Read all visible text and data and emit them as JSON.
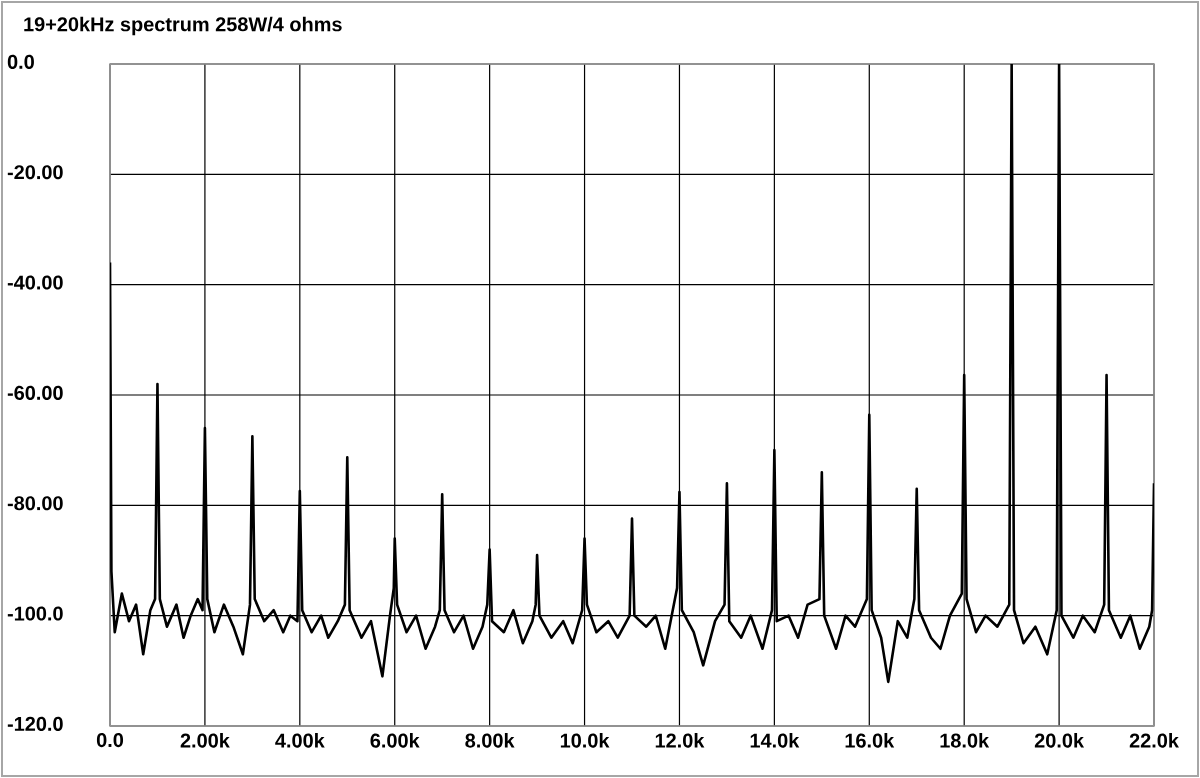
{
  "chart_data": {
    "type": "line",
    "title": "19+20kHz spectrum 258W/4 ohms",
    "xlim": [
      0,
      22000
    ],
    "ylim": [
      -120,
      0
    ],
    "xticks": [
      {
        "value": 0,
        "label": "0.0"
      },
      {
        "value": 2000,
        "label": "2.00k"
      },
      {
        "value": 4000,
        "label": "4.00k"
      },
      {
        "value": 6000,
        "label": "6.00k"
      },
      {
        "value": 8000,
        "label": "8.00k"
      },
      {
        "value": 10000,
        "label": "10.0k"
      },
      {
        "value": 12000,
        "label": "12.0k"
      },
      {
        "value": 14000,
        "label": "14.0k"
      },
      {
        "value": 16000,
        "label": "16.0k"
      },
      {
        "value": 18000,
        "label": "18.0k"
      },
      {
        "value": 20000,
        "label": "20.0k"
      },
      {
        "value": 22000,
        "label": "22.0k"
      }
    ],
    "yticks": [
      {
        "value": 0,
        "label": "0.0"
      },
      {
        "value": -20,
        "label": "-20.00"
      },
      {
        "value": -40,
        "label": "-40.00"
      },
      {
        "value": -60,
        "label": "-60.00"
      },
      {
        "value": -80,
        "label": "-80.00"
      },
      {
        "value": -100,
        "label": "-100.0"
      },
      {
        "value": -120,
        "label": "-120.0"
      }
    ],
    "grid": true,
    "legend": false,
    "marker": "none",
    "line_style": "solid",
    "series": [
      {
        "color": "#000000",
        "x": [
          0,
          30,
          100,
          250,
          400,
          550,
          700,
          850,
          950,
          1000,
          1050,
          1200,
          1400,
          1550,
          1700,
          1850,
          1950,
          2000,
          2050,
          2200,
          2400,
          2600,
          2800,
          2950,
          3000,
          3050,
          3250,
          3450,
          3650,
          3800,
          3950,
          4000,
          4050,
          4250,
          4450,
          4600,
          4800,
          4950,
          5000,
          5050,
          5300,
          5500,
          5740,
          5900,
          5980,
          6000,
          6050,
          6250,
          6450,
          6650,
          6850,
          6950,
          7000,
          7050,
          7250,
          7450,
          7650,
          7850,
          7950,
          8000,
          8050,
          8300,
          8500,
          8700,
          8900,
          8970,
          9000,
          9050,
          9300,
          9550,
          9750,
          9950,
          10000,
          10050,
          10250,
          10500,
          10700,
          10950,
          11000,
          11050,
          11300,
          11500,
          11700,
          11950,
          12000,
          12050,
          12300,
          12500,
          12750,
          12950,
          13000,
          13050,
          13300,
          13500,
          13750,
          13950,
          14000,
          14050,
          14300,
          14500,
          14700,
          14950,
          15000,
          15050,
          15300,
          15500,
          15700,
          15950,
          16000,
          16050,
          16250,
          16400,
          16600,
          16800,
          16950,
          17000,
          17050,
          17300,
          17500,
          17700,
          17950,
          18000,
          18050,
          18250,
          18450,
          18700,
          18950,
          19000,
          19050,
          19250,
          19500,
          19750,
          19950,
          20000,
          20050,
          20300,
          20500,
          20750,
          20950,
          21000,
          21050,
          21300,
          21500,
          21700,
          21900,
          21960,
          22000
        ],
        "values": [
          -36,
          -92,
          -103,
          -96,
          -101,
          -98,
          -107,
          -99,
          -97,
          -58,
          -97,
          -102,
          -98,
          -104,
          -100,
          -97,
          -99,
          -66,
          -97,
          -103,
          -98,
          -102,
          -107,
          -98,
          -67.5,
          -97,
          -101,
          -99,
          -103,
          -100,
          -101,
          -77.4,
          -99,
          -103,
          -100,
          -104,
          -101,
          -98,
          -71.3,
          -99,
          -104,
          -101,
          -111,
          -100,
          -95,
          -86,
          -98,
          -103,
          -100,
          -106,
          -102,
          -99,
          -78,
          -99,
          -103,
          -100,
          -106,
          -102,
          -98,
          -88,
          -101,
          -103,
          -99,
          -105,
          -101,
          -98,
          -89,
          -100,
          -104,
          -101,
          -105,
          -99,
          -86,
          -98,
          -103,
          -101,
          -104,
          -100,
          -82.4,
          -100,
          -102,
          -100,
          -106,
          -95,
          -77.6,
          -99,
          -103,
          -109,
          -101,
          -98,
          -76,
          -101,
          -104,
          -100,
          -106,
          -99,
          -70,
          -101,
          -100,
          -104,
          -98,
          -97,
          -74,
          -100,
          -106,
          -100,
          -102,
          -97,
          -63.6,
          -99,
          -104,
          -112,
          -101,
          -104,
          -97,
          -77,
          -99,
          -104,
          -106,
          -100,
          -96,
          -56.4,
          -97,
          -103,
          -100,
          -102,
          -98,
          0,
          -99,
          -105,
          -102,
          -107,
          -99,
          0,
          -100,
          -104,
          -100,
          -103,
          -98,
          -56.4,
          -99,
          -104,
          -100,
          -106,
          -102,
          -99,
          -76
        ]
      }
    ]
  }
}
